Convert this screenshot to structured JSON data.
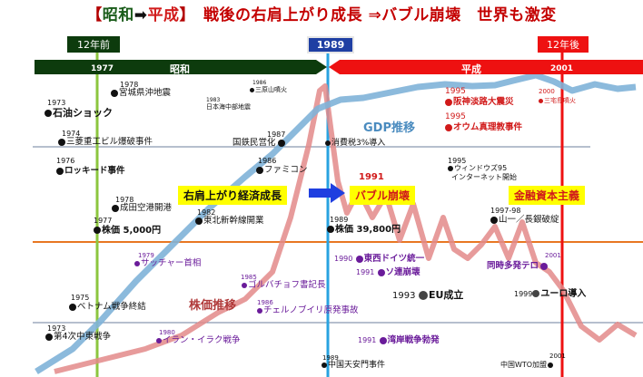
{
  "title": {
    "bracket_open": "【",
    "showa": "昭和",
    "arrow": "➡",
    "heisei": "平成",
    "bracket_close": "】",
    "rest": "　戦後の右肩上がり成長 ⇒バブル崩壊　世界も激変"
  },
  "colors": {
    "showa_bar": "#0d3b0d",
    "heisei_bar": "#ee1111",
    "gdp_line": "#7fb3d8",
    "stock_line": "#e38a8a",
    "line_1977": "#8cc63f",
    "line_1989": "#29a3e0",
    "line_2001": "#ee1111",
    "orange_rule": "#e87722"
  },
  "flags": {
    "before": "12年前",
    "center": "1989",
    "after": "12年後"
  },
  "timeline": {
    "year_1977": "1977",
    "showa_label": "昭和",
    "heisei_label": "平成",
    "year_2001": "2001"
  },
  "series_labels": {
    "gdp": "GDP推移",
    "stock": "株価推移"
  },
  "boxes": {
    "growth": "右肩上がり経済成長",
    "bubble": "バブル崩壊",
    "finance": "金融資本主義"
  },
  "events": {
    "e1973a_y": "1973",
    "e1973a": "石油ショック",
    "e1978a_y": "1978",
    "e1978a": "宮城県沖地震",
    "e1983_y": "1983",
    "e1983": "日本海中部地震",
    "e1986a_y": "1986",
    "e1986a": "三原山噴火",
    "e1974_y": "1974",
    "e1974": "三菱重工ビル爆破事件",
    "e1987_y": "1987",
    "e1987": "国鉄民営化",
    "e1989a": "消費税3%導入",
    "e1995a_y": "1995",
    "e1995a": "阪神淡路大震災",
    "e1995b_y": "1995",
    "e1995b": "オウム真理教事件",
    "e2000_y": "2000",
    "e2000": "三宅島噴火",
    "e1976_y": "1976",
    "e1976": "ロッキード事件",
    "e1986b_y": "1986",
    "e1986b": "ファミコン",
    "e1991_y": "1991",
    "e1995c_y": "1995",
    "e1995c1": "ウィンドウズ95",
    "e1995c2": "インターネット開始",
    "e1978b_y": "1978",
    "e1978b": "成田空港開港",
    "e1982_y": "1982",
    "e1982": "東北新幹線開業",
    "e1997_y": "1997-98",
    "e1997": "山一／長銀破綻",
    "e1977_y": "1977",
    "e1977": "株価 5,000円",
    "e1989b_y": "1989",
    "e1989b": "株価 39,800円",
    "e1979_y": "1979",
    "e1979": "サッチャー首相",
    "e1990_y": "1990",
    "e1990": "東西ドイツ統一",
    "e2001a_y": "2001",
    "e2001a": "同時多発テロ",
    "e1985_y": "1985",
    "e1985": "ゴルバチョフ書記長",
    "e1991b_y": "1991",
    "e1991b": "ソ連崩壊",
    "e1975_y": "1975",
    "e1975": "ベトナム戦争終結",
    "e1993_y": "1993",
    "e1993": "EU成立",
    "e1999_y": "1999",
    "e1999": "ユーロ導入",
    "e1986c_y": "1986",
    "e1986c": "チェルノブイリ原発事故",
    "e1973b_y": "1973",
    "e1973b": "第4次中東戦争",
    "e1980_y": "1980",
    "e1980": "イラン・イラク戦争",
    "e1991c_y": "1991",
    "e1991c": "湾岸戦争勃発",
    "e1989c_y": "1989",
    "e1989c": "中国天安門事件",
    "e2001b_y": "2001",
    "e2001b": "中国WTO加盟"
  }
}
